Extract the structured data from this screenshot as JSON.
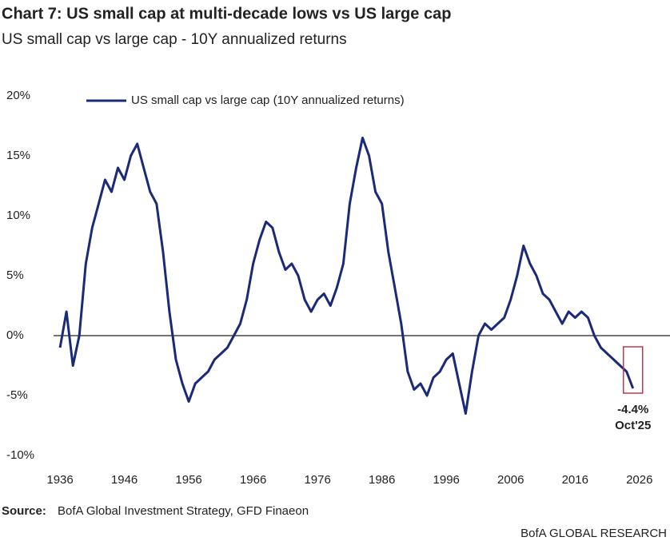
{
  "chart_data": {
    "type": "line",
    "title": "Chart 7: US small cap at multi-decade lows vs US large cap",
    "subtitle": "US small cap vs large cap - 10Y annualized returns",
    "x": [
      1936,
      1937,
      1938,
      1939,
      1940,
      1941,
      1942,
      1943,
      1944,
      1945,
      1946,
      1947,
      1948,
      1949,
      1950,
      1951,
      1952,
      1953,
      1954,
      1955,
      1956,
      1957,
      1958,
      1959,
      1960,
      1961,
      1962,
      1963,
      1964,
      1965,
      1966,
      1967,
      1968,
      1969,
      1970,
      1971,
      1972,
      1973,
      1974,
      1975,
      1976,
      1977,
      1978,
      1979,
      1980,
      1981,
      1982,
      1983,
      1984,
      1985,
      1986,
      1987,
      1988,
      1989,
      1990,
      1991,
      1992,
      1993,
      1994,
      1995,
      1996,
      1997,
      1998,
      1999,
      2000,
      2001,
      2002,
      2003,
      2004,
      2005,
      2006,
      2007,
      2008,
      2009,
      2010,
      2011,
      2012,
      2013,
      2014,
      2015,
      2016,
      2017,
      2018,
      2019,
      2020,
      2021,
      2022,
      2023,
      2024,
      2025
    ],
    "series": [
      {
        "name": "US small cap vs large cap (10Y annualized returns)",
        "color": "#1b2a78",
        "values": [
          -1,
          2,
          -2.5,
          0,
          6,
          9,
          11,
          13,
          12,
          14,
          13,
          15,
          16,
          14,
          12,
          11,
          7,
          2,
          -2,
          -4,
          -5.5,
          -4,
          -3.5,
          -3,
          -2,
          -1.5,
          -1,
          0,
          1,
          3,
          6,
          8,
          9.5,
          9,
          7,
          5.5,
          6,
          5,
          3,
          2,
          3,
          3.5,
          2.5,
          4,
          6,
          11,
          14,
          16.5,
          15,
          12,
          11,
          7,
          4,
          1,
          -3,
          -4.5,
          -4,
          -5,
          -3.5,
          -3,
          -2,
          -1.5,
          -4,
          -6.5,
          -3,
          0,
          1,
          0.5,
          1,
          1.5,
          3,
          5,
          7.5,
          6,
          5,
          3.5,
          3,
          2,
          1,
          2,
          1.5,
          2,
          1.5,
          0,
          -1,
          -1.5,
          -2,
          -2.5,
          -3,
          -4.4
        ],
        "value_labels": [
          null,
          null,
          null,
          null,
          null,
          null,
          null,
          null,
          null,
          null,
          null,
          null,
          null,
          null,
          null,
          null,
          null,
          null,
          null,
          null,
          null,
          null,
          null,
          null,
          null,
          null,
          null,
          null,
          null,
          null,
          null,
          null,
          null,
          null,
          null,
          null,
          null,
          null,
          null,
          null,
          null,
          null,
          null,
          null,
          null,
          null,
          null,
          null,
          null,
          null,
          null,
          null,
          null,
          null,
          null,
          null,
          null,
          null,
          null,
          null,
          null,
          null,
          null,
          null,
          null,
          null,
          null,
          null,
          null,
          null,
          null,
          null,
          null,
          null,
          null,
          null,
          null,
          null,
          null,
          null,
          null,
          null,
          null,
          null,
          null,
          null,
          null,
          null,
          null,
          "-4.4%"
        ]
      }
    ],
    "annotation": "Oct'25",
    "annotation_color": "#c0394b",
    "xlim": [
      1935,
      2030
    ],
    "xticks": [
      1936,
      1946,
      1956,
      1966,
      1976,
      1986,
      1996,
      2006,
      2016,
      2026
    ],
    "ylim": [
      -10,
      20
    ],
    "yticks": [
      {
        "value": 20,
        "label": "20%"
      },
      {
        "value": 15,
        "label": "15%"
      },
      {
        "value": 10,
        "label": "10%"
      },
      {
        "value": 5,
        "label": "5%"
      },
      {
        "value": 0,
        "label": "0%"
      },
      {
        "value": -5,
        "label": "-5%"
      },
      {
        "value": -10,
        "label": "-10%"
      }
    ],
    "source_label": "Source:",
    "source": "BofA Global Investment Strategy, GFD Finaeon",
    "footer": "BofA GLOBAL RESEARCH"
  }
}
